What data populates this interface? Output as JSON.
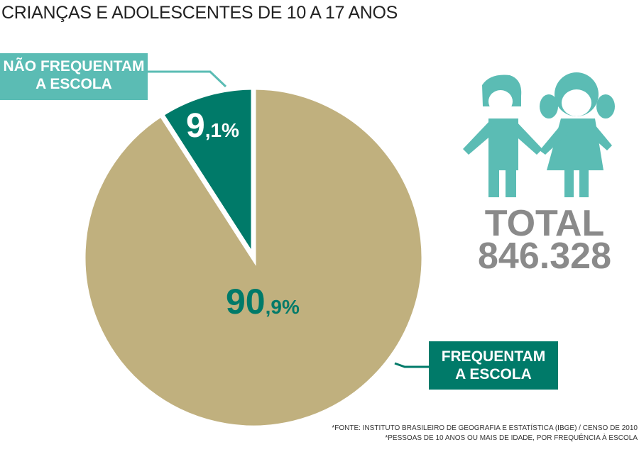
{
  "title": "CRIANÇAS E ADOLESCENTES DE 10 A 17 ANOS",
  "colors": {
    "frequentam": "#c0b07e",
    "nao_frequentam": "#007a69",
    "label_light": "#5bbcb4",
    "total": "#8a8a8a"
  },
  "chart_data": {
    "type": "pie",
    "title": "CRIANÇAS E ADOLESCENTES DE 10 A 17 ANOS",
    "slices": [
      {
        "label": "NÃO FREQUENTAM A ESCOLA",
        "value": 9.1,
        "display_int": "9",
        "display_dec": ",1%"
      },
      {
        "label": "FREQUENTAM A ESCOLA",
        "value": 90.9,
        "display_int": "90",
        "display_dec": ",9%"
      }
    ]
  },
  "labels": {
    "nao_line1": "NÃO FREQUENTAM",
    "nao_line2": "A ESCOLA",
    "freq_line1": "FREQUENTAM",
    "freq_line2": "A ESCOLA"
  },
  "total": {
    "label": "TOTAL",
    "value": "846.328"
  },
  "sources": [
    "*FONTE: INSTITUTO BRASILEIRO DE GEOGRAFIA E ESTATÍSTICA (IBGE) / CENSO DE 2010",
    "*PESSOAS DE 10 ANOS OU MAIS DE IDADE, POR FREQUÊNCIA À ESCOLA"
  ]
}
